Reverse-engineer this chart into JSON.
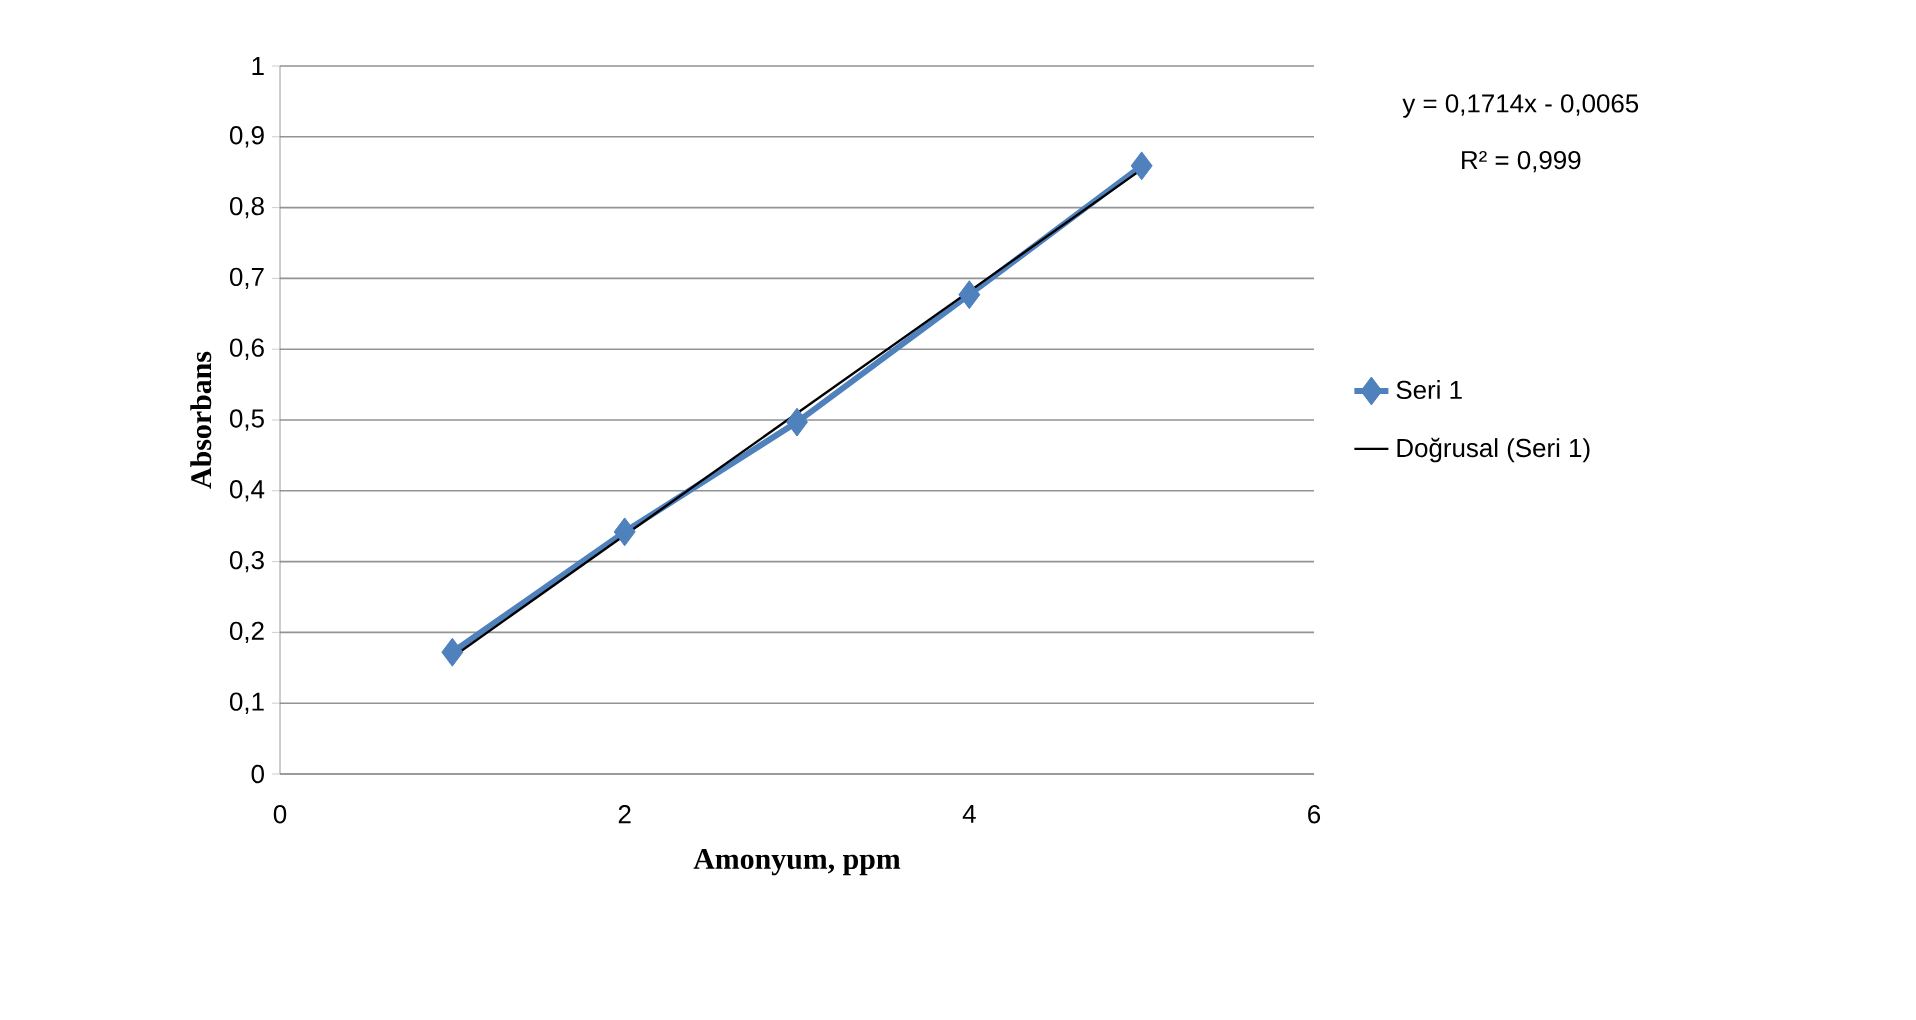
{
  "chart_data": {
    "type": "line",
    "xlabel": "Amonyum, ppm",
    "ylabel": "Absorbans",
    "xlim": [
      0,
      6
    ],
    "xticks": [
      0,
      2,
      4,
      6
    ],
    "ylim": [
      0,
      1
    ],
    "yticks": [
      0,
      {
        "value": 0.1,
        "label": "0,1"
      },
      {
        "value": 0.2,
        "label": "0,2"
      },
      {
        "value": 0.3,
        "label": "0,3"
      },
      {
        "value": 0.4,
        "label": "0,4"
      },
      {
        "value": 0.5,
        "label": "0,5"
      },
      {
        "value": 0.6,
        "label": "0,6"
      },
      {
        "value": 0.7,
        "label": "0,7"
      },
      {
        "value": 0.8,
        "label": "0,8"
      },
      {
        "value": 0.9,
        "label": "0,9"
      },
      1
    ],
    "grid": "y",
    "legend": "right",
    "series": [
      {
        "name": "Seri 1",
        "color": "#4f81bd",
        "x": [
          1,
          2,
          3,
          4,
          5
        ],
        "values": [
          0.172,
          0.342,
          0.497,
          0.677,
          0.859
        ],
        "marker": "diamond",
        "line_style": "solid"
      },
      {
        "name": "Doğrusal (Seri 1)",
        "color": "#000000",
        "x": [
          1,
          5
        ],
        "values": [
          0.165,
          0.854
        ],
        "marker": "none",
        "line_style": "solid"
      }
    ],
    "annotations": [
      "y = 0,1714x - 0,0065",
      "R² = 0,999"
    ]
  }
}
